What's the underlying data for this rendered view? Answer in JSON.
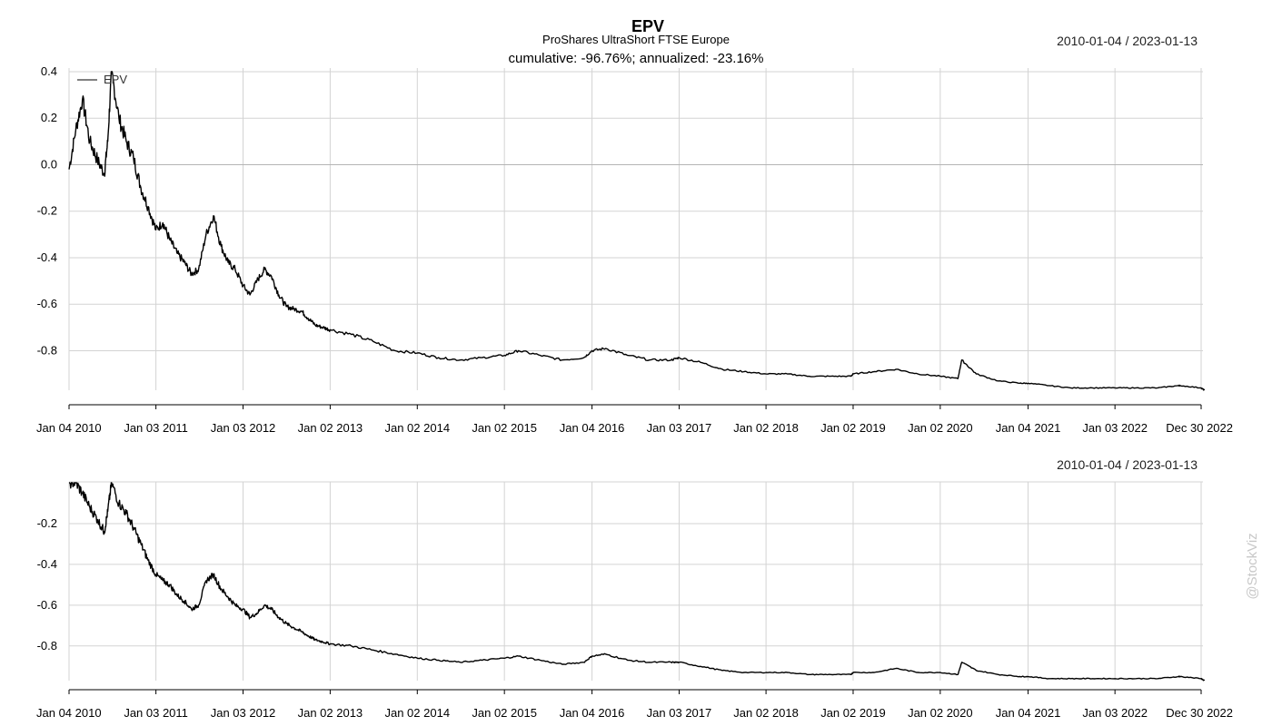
{
  "header": {
    "title": "EPV",
    "subtitle": "ProShares UltraShort FTSE Europe",
    "stats": "cumulative: -96.76%; annualized: -23.16%"
  },
  "watermark": "@StockViz",
  "colors": {
    "line": "#000000",
    "grid": "#d3d3d3",
    "zero": "#b4b4b4"
  },
  "chart_data": [
    {
      "type": "line",
      "title": "EPV",
      "date_range": "2010-01-04 / 2023-01-13",
      "x_ticks": [
        "Jan 04 2010",
        "Jan 03 2011",
        "Jan 03 2012",
        "Jan 02 2013",
        "Jan 02 2014",
        "Jan 02 2015",
        "Jan 04 2016",
        "Jan 03 2017",
        "Jan 02 2018",
        "Jan 02 2019",
        "Jan 02 2020",
        "Jan 04 2021",
        "Jan 03 2022",
        "Dec 30 2022"
      ],
      "y_ticks": [
        "0.4",
        "0.2",
        "0.0",
        "-0.2",
        "-0.4",
        "-0.6",
        "-0.8"
      ],
      "ylim": [
        -0.97,
        0.4
      ],
      "grid": true,
      "legend": {
        "position": "top-left",
        "entries": [
          "EPV"
        ]
      },
      "series": [
        {
          "name": "EPV",
          "x": [
            "2010-01-04",
            "2010-02-01",
            "2010-03-01",
            "2010-04-01",
            "2010-05-03",
            "2010-06-01",
            "2010-06-15",
            "2010-07-01",
            "2010-08-01",
            "2010-09-01",
            "2010-10-01",
            "2010-11-01",
            "2010-12-01",
            "2011-01-03",
            "2011-02-01",
            "2011-03-01",
            "2011-04-01",
            "2011-05-02",
            "2011-06-01",
            "2011-07-01",
            "2011-08-01",
            "2011-09-01",
            "2011-10-03",
            "2011-11-01",
            "2011-12-01",
            "2012-01-03",
            "2012-02-01",
            "2012-03-01",
            "2012-04-02",
            "2012-05-01",
            "2012-06-01",
            "2012-07-02",
            "2012-08-01",
            "2012-09-04",
            "2012-10-01",
            "2012-11-01",
            "2012-12-03",
            "2013-01-02",
            "2013-04-01",
            "2013-07-01",
            "2013-10-01",
            "2014-01-02",
            "2014-04-01",
            "2014-07-01",
            "2014-10-01",
            "2015-01-02",
            "2015-03-02",
            "2015-06-01",
            "2015-09-01",
            "2015-12-01",
            "2016-01-04",
            "2016-03-01",
            "2016-06-01",
            "2016-09-01",
            "2016-12-01",
            "2017-01-03",
            "2017-04-03",
            "2017-07-03",
            "2017-10-02",
            "2018-01-02",
            "2018-04-02",
            "2018-07-02",
            "2018-10-01",
            "2018-12-24",
            "2019-01-02",
            "2019-04-01",
            "2019-07-01",
            "2019-10-01",
            "2020-01-02",
            "2020-03-16",
            "2020-04-01",
            "2020-06-01",
            "2020-09-01",
            "2020-12-01",
            "2021-01-04",
            "2021-04-01",
            "2021-07-01",
            "2021-10-01",
            "2022-01-03",
            "2022-04-01",
            "2022-07-01",
            "2022-09-26",
            "2022-10-03",
            "2022-12-30",
            "2023-01-13"
          ],
          "y": [
            -0.02,
            0.15,
            0.28,
            0.1,
            0.02,
            -0.04,
            0.1,
            0.4,
            0.2,
            0.1,
            0.03,
            -0.1,
            -0.18,
            -0.28,
            -0.25,
            -0.32,
            -0.38,
            -0.42,
            -0.47,
            -0.45,
            -0.3,
            -0.22,
            -0.35,
            -0.42,
            -0.45,
            -0.52,
            -0.56,
            -0.5,
            -0.45,
            -0.48,
            -0.56,
            -0.61,
            -0.62,
            -0.63,
            -0.66,
            -0.69,
            -0.7,
            -0.71,
            -0.73,
            -0.76,
            -0.8,
            -0.81,
            -0.83,
            -0.84,
            -0.83,
            -0.82,
            -0.8,
            -0.82,
            -0.84,
            -0.83,
            -0.8,
            -0.79,
            -0.82,
            -0.84,
            -0.84,
            -0.83,
            -0.85,
            -0.88,
            -0.89,
            -0.9,
            -0.9,
            -0.91,
            -0.91,
            -0.91,
            -0.9,
            -0.89,
            -0.88,
            -0.9,
            -0.91,
            -0.92,
            -0.84,
            -0.9,
            -0.93,
            -0.94,
            -0.94,
            -0.95,
            -0.96,
            -0.96,
            -0.96,
            -0.96,
            -0.96,
            -0.95,
            -0.95,
            -0.96,
            -0.97
          ]
        }
      ]
    },
    {
      "type": "line",
      "title": "",
      "date_range": "2010-01-04 / 2023-01-13",
      "x_ticks": [
        "Jan 04 2010",
        "Jan 03 2011",
        "Jan 03 2012",
        "Jan 02 2013",
        "Jan 02 2014",
        "Jan 02 2015",
        "Jan 04 2016",
        "Jan 03 2017",
        "Jan 02 2018",
        "Jan 02 2019",
        "Jan 02 2020",
        "Jan 04 2021",
        "Jan 03 2022",
        "Dec 30 2022"
      ],
      "y_ticks": [
        "-0.2",
        "-0.4",
        "-0.6",
        "-0.8"
      ],
      "ylim": [
        -0.97,
        0.0
      ],
      "grid": true,
      "series": [
        {
          "name": "",
          "x": [
            "2010-01-04",
            "2010-02-01",
            "2010-03-01",
            "2010-04-01",
            "2010-05-03",
            "2010-06-01",
            "2010-06-15",
            "2010-07-01",
            "2010-08-01",
            "2010-09-01",
            "2010-10-01",
            "2010-11-01",
            "2010-12-01",
            "2011-01-03",
            "2011-02-01",
            "2011-03-01",
            "2011-04-01",
            "2011-05-02",
            "2011-06-01",
            "2011-07-01",
            "2011-08-01",
            "2011-09-01",
            "2011-10-03",
            "2011-11-01",
            "2011-12-01",
            "2012-01-03",
            "2012-02-01",
            "2012-03-01",
            "2012-04-02",
            "2012-05-01",
            "2012-06-01",
            "2012-07-02",
            "2012-08-01",
            "2012-09-04",
            "2012-10-01",
            "2012-11-01",
            "2012-12-03",
            "2013-01-02",
            "2013-04-01",
            "2013-07-01",
            "2013-10-01",
            "2014-01-02",
            "2014-04-01",
            "2014-07-01",
            "2014-10-01",
            "2015-01-02",
            "2015-03-02",
            "2015-06-01",
            "2015-09-01",
            "2015-12-01",
            "2016-01-04",
            "2016-03-01",
            "2016-06-01",
            "2016-09-01",
            "2016-12-01",
            "2017-01-03",
            "2017-04-03",
            "2017-07-03",
            "2017-10-02",
            "2018-01-02",
            "2018-04-02",
            "2018-07-02",
            "2018-10-01",
            "2018-12-24",
            "2019-01-02",
            "2019-04-01",
            "2019-07-01",
            "2019-10-01",
            "2020-01-02",
            "2020-03-16",
            "2020-04-01",
            "2020-06-01",
            "2020-09-01",
            "2020-12-01",
            "2021-01-04",
            "2021-04-01",
            "2021-07-01",
            "2021-10-01",
            "2022-01-03",
            "2022-04-01",
            "2022-07-01",
            "2022-09-26",
            "2022-10-03",
            "2022-12-30",
            "2023-01-13"
          ],
          "y": [
            0.0,
            0.0,
            -0.05,
            -0.12,
            -0.18,
            -0.24,
            -0.14,
            0.0,
            -0.1,
            -0.15,
            -0.22,
            -0.3,
            -0.38,
            -0.45,
            -0.48,
            -0.5,
            -0.55,
            -0.58,
            -0.62,
            -0.6,
            -0.48,
            -0.45,
            -0.52,
            -0.56,
            -0.6,
            -0.62,
            -0.66,
            -0.64,
            -0.6,
            -0.62,
            -0.66,
            -0.69,
            -0.71,
            -0.73,
            -0.75,
            -0.77,
            -0.78,
            -0.79,
            -0.8,
            -0.82,
            -0.84,
            -0.86,
            -0.87,
            -0.88,
            -0.87,
            -0.86,
            -0.85,
            -0.87,
            -0.89,
            -0.88,
            -0.85,
            -0.84,
            -0.87,
            -0.88,
            -0.88,
            -0.88,
            -0.9,
            -0.92,
            -0.93,
            -0.93,
            -0.93,
            -0.94,
            -0.94,
            -0.94,
            -0.93,
            -0.93,
            -0.91,
            -0.93,
            -0.93,
            -0.94,
            -0.88,
            -0.92,
            -0.94,
            -0.95,
            -0.95,
            -0.96,
            -0.96,
            -0.96,
            -0.96,
            -0.96,
            -0.96,
            -0.95,
            -0.95,
            -0.96,
            -0.97
          ]
        }
      ]
    }
  ]
}
